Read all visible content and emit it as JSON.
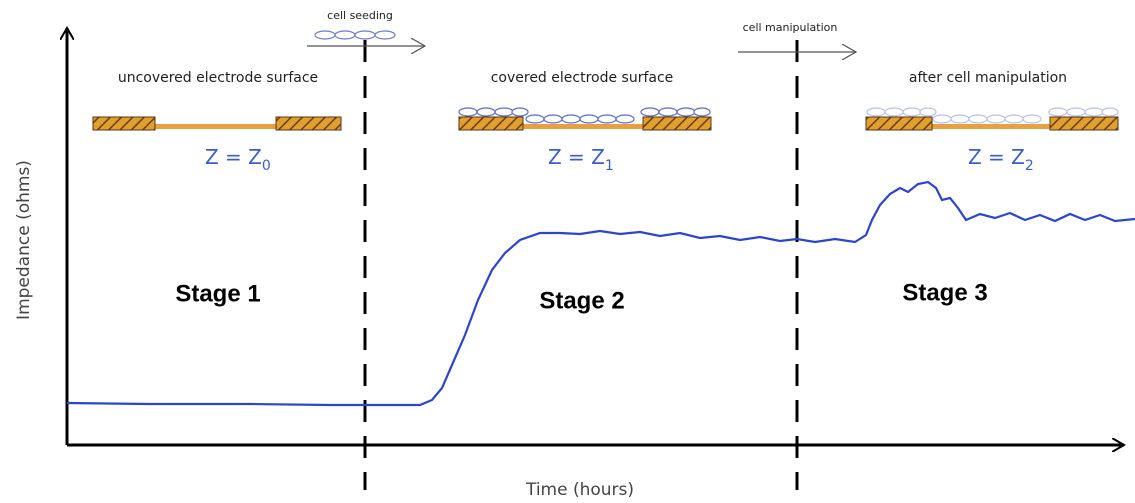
{
  "arrows": [
    {
      "label": "cell seeding"
    },
    {
      "label": "cell manipulation"
    }
  ],
  "stages": [
    {
      "caption": "uncovered electrode surface",
      "equation": "Z = Z",
      "subscript": "0",
      "name": "Stage 1"
    },
    {
      "caption": "covered electrode surface",
      "equation": "Z = Z",
      "subscript": "1",
      "name": "Stage 2"
    },
    {
      "caption": "after cell manipulation",
      "equation": "Z = Z",
      "subscript": "2",
      "name": "Stage 3"
    }
  ],
  "axes": {
    "y_label": "Impedance (ohms)",
    "x_label": "Time (hours)"
  }
}
